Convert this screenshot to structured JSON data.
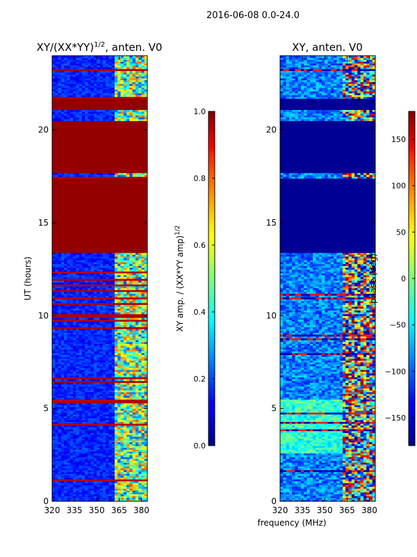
{
  "suptitle": "2016-06-08 0.0-24.0",
  "shared_xlabel": "frequency (MHz)",
  "chart_data": [
    {
      "type": "heatmap",
      "title_base": "XY/(XX*YY)",
      "title_sup": "1/2",
      "title_tail": ", anten. V0",
      "ylabel": "UT (hours)",
      "xlim": [
        320,
        384
      ],
      "ylim": [
        0,
        24
      ],
      "xticks": [
        320,
        335,
        350,
        365,
        380
      ],
      "yticks": [
        0,
        5,
        10,
        15,
        20
      ],
      "flagged_bands_hours": [
        [
          13.4,
          17.4
        ],
        [
          17.7,
          20.5
        ],
        [
          21.1,
          21.7
        ]
      ],
      "colorbar": {
        "label_base": "XY amp. / (XX*YY amp)",
        "label_sup": "1/2",
        "range": [
          0.0,
          1.0
        ],
        "ticks": [
          "0.0",
          "0.2",
          "0.4",
          "0.6",
          "0.8",
          "1.0"
        ],
        "colormap": "jet"
      }
    },
    {
      "type": "heatmap",
      "title": "XY, anten. V0",
      "ylabel": "phase (deg)",
      "xlim": [
        320,
        384
      ],
      "ylim": [
        0,
        24
      ],
      "xticks": [
        320,
        335,
        350,
        365,
        380
      ],
      "yticks": [
        0,
        5,
        10,
        15,
        20
      ],
      "flagged_bands_hours": [
        [
          13.4,
          17.4
        ],
        [
          17.7,
          20.5
        ],
        [
          21.1,
          21.7
        ]
      ],
      "colorbar": {
        "range": [
          -180,
          180
        ],
        "ticks": [
          "−150",
          "−100",
          "−50",
          "0",
          "50",
          "100",
          "150"
        ],
        "colormap": "jet"
      }
    }
  ]
}
